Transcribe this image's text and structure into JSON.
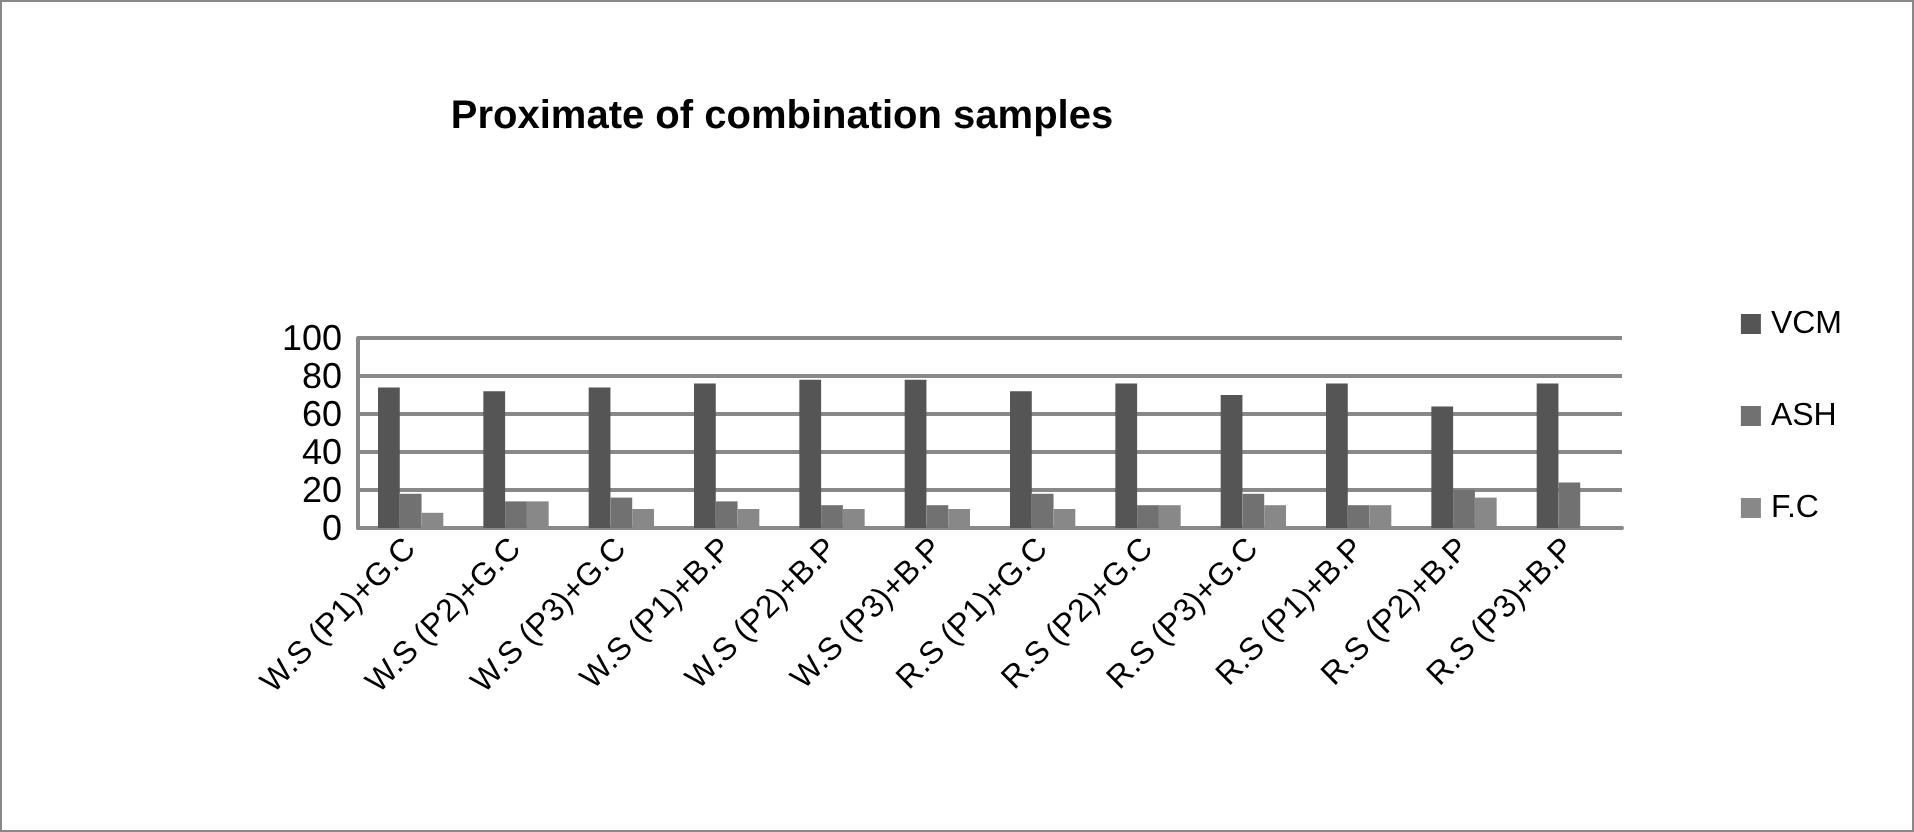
{
  "chart_data": {
    "type": "bar",
    "title": "Proximate of combination samples",
    "categories": [
      "W.S (P1)+G.C",
      "W.S (P2)+G.C",
      "W.S (P3)+G.C",
      "W.S (P1)+B.P",
      "W.S (P2)+B.P",
      "W.S (P3)+B.P",
      "R.S (P1)+G.C",
      "R.S (P2)+G.C",
      "R.S (P3)+G.C",
      "R.S (P1)+B.P",
      "R.S (P2)+B.P",
      "R.S (P3)+B.P"
    ],
    "series": [
      {
        "name": "VCM",
        "color": "#555555",
        "values": [
          74,
          72,
          74,
          76,
          78,
          78,
          72,
          76,
          70,
          76,
          64,
          76
        ]
      },
      {
        "name": "ASH",
        "color": "#717171",
        "values": [
          18,
          14,
          16,
          14,
          12,
          12,
          18,
          12,
          18,
          12,
          20,
          24
        ]
      },
      {
        "name": "F.C",
        "color": "#888888",
        "values": [
          8,
          14,
          10,
          10,
          10,
          10,
          10,
          12,
          12,
          12,
          16,
          0
        ]
      }
    ],
    "ylim": [
      0,
      100
    ],
    "yticks": [
      0,
      20,
      40,
      60,
      80,
      100
    ],
    "grid": "y",
    "legend": "right"
  }
}
